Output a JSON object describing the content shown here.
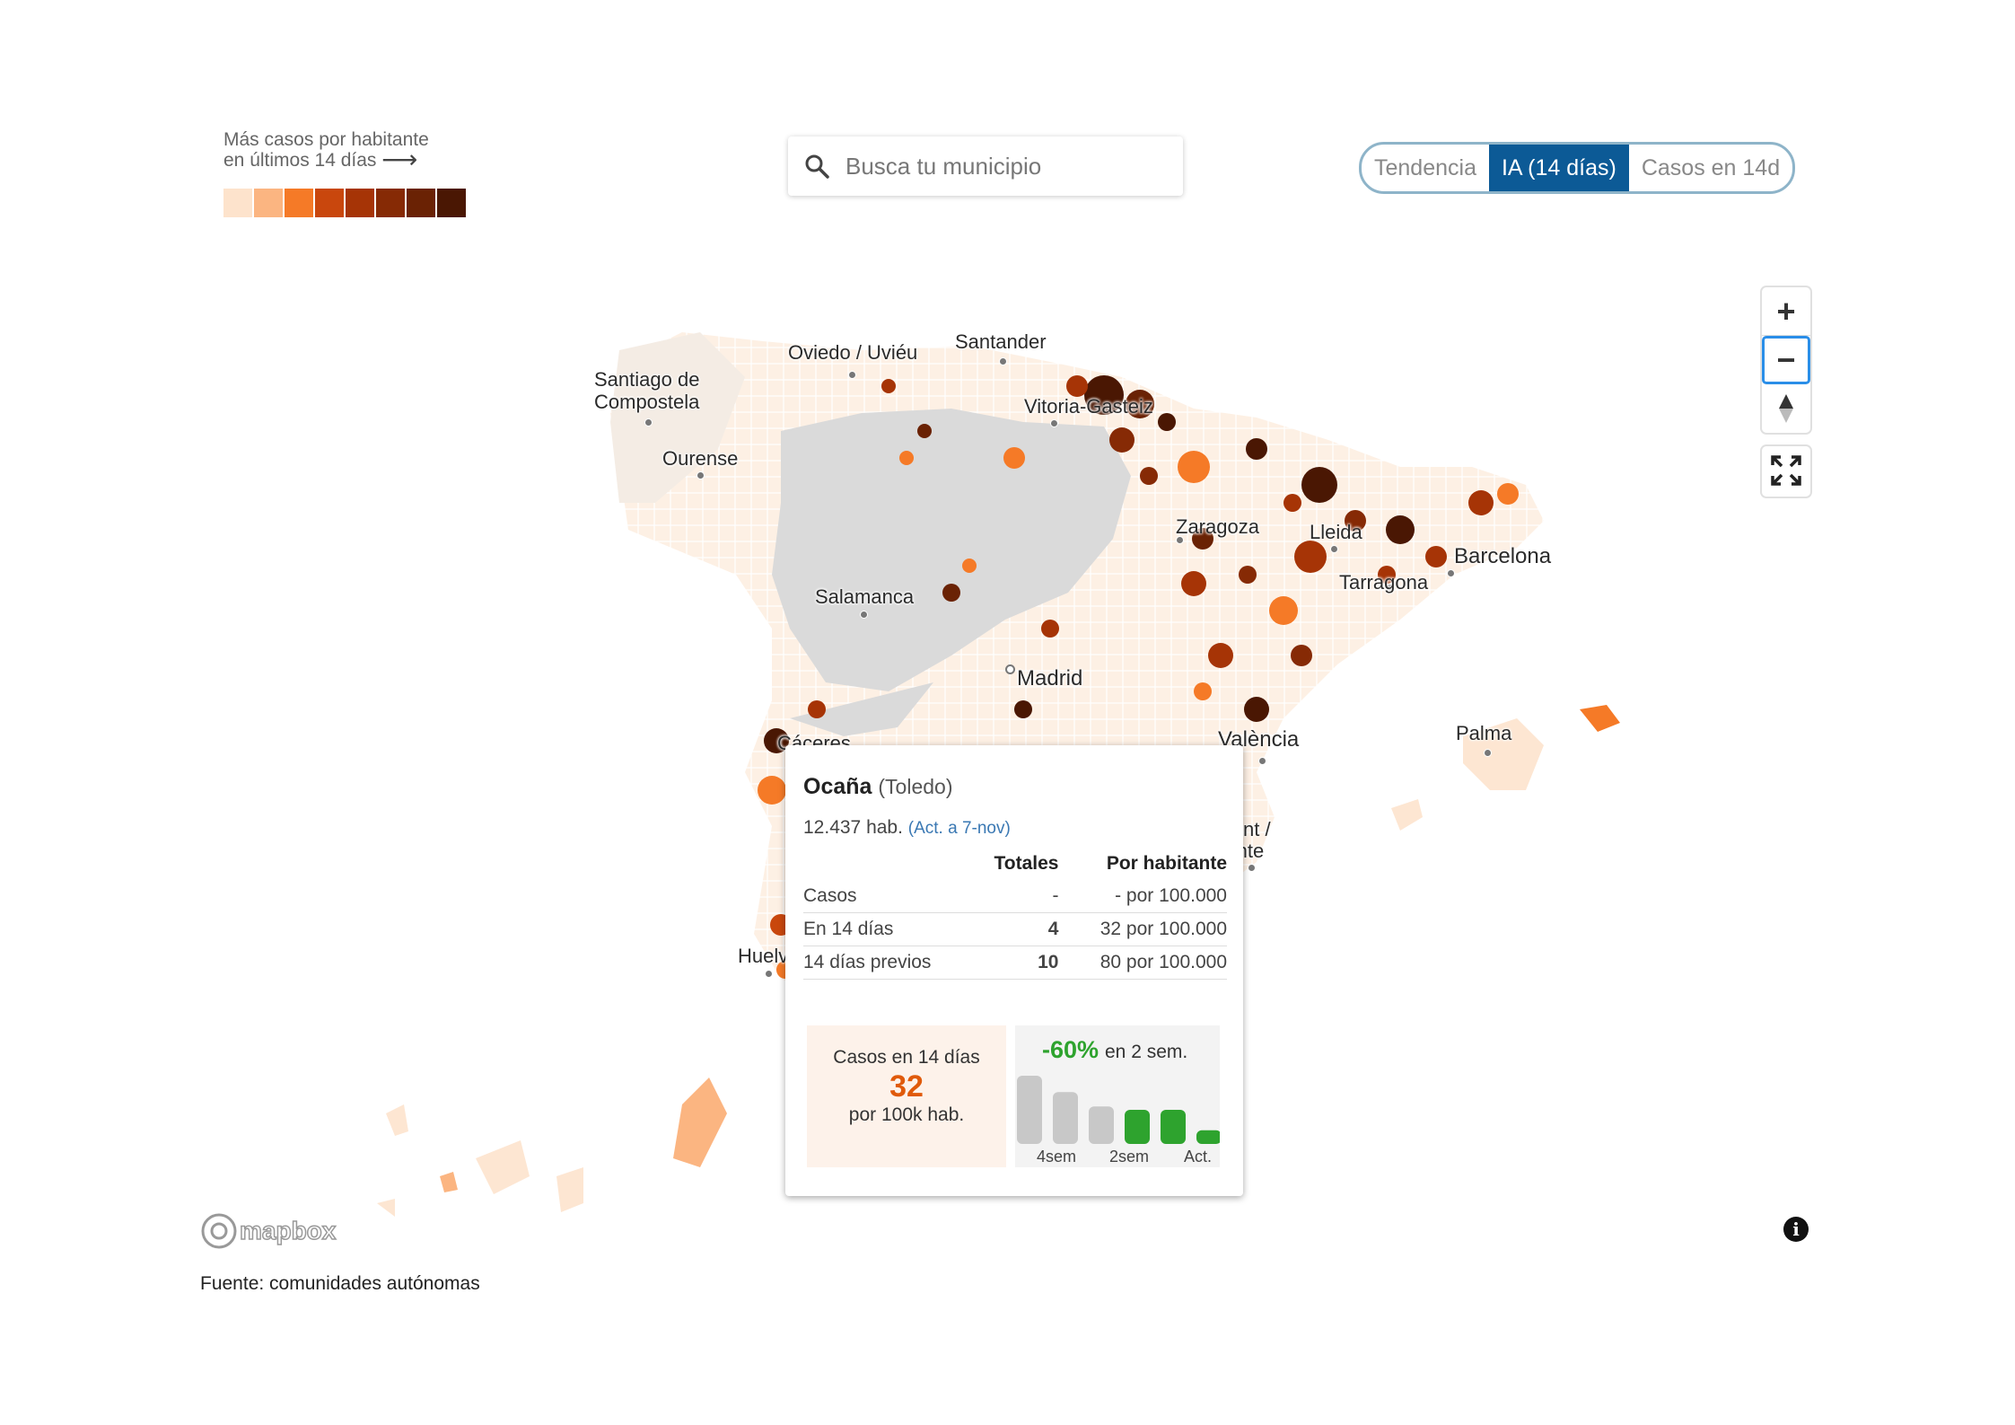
{
  "legend": {
    "title_line1": "Más casos por habitante",
    "title_line2": "en últimos 14 días",
    "arrow": "⟶",
    "colors": [
      "#fde3cc",
      "#fbb581",
      "#f57a27",
      "#c9470d",
      "#a63406",
      "#862a05",
      "#6a2204",
      "#4a1703"
    ]
  },
  "search": {
    "placeholder": "Busca tu municipio",
    "icon": "search-icon"
  },
  "toggle": {
    "options": [
      "Tendencia",
      "IA (14 días)",
      "Casos en 14d"
    ],
    "active": "IA (14 días)"
  },
  "controls": {
    "zoom_in": "+",
    "zoom_out": "−",
    "compass": "compass-icon",
    "fullscreen": "fullscreen-icon"
  },
  "cities": [
    {
      "name": "Oviedo / Uviéu"
    },
    {
      "name": "Santander"
    },
    {
      "name": "Santiago de Compostela"
    },
    {
      "name": "Vitoria-Gasteiz"
    },
    {
      "name": "Ourense"
    },
    {
      "name": "Zaragoza"
    },
    {
      "name": "Lleida"
    },
    {
      "name": "Barcelona"
    },
    {
      "name": "Tarragona"
    },
    {
      "name": "Salamanca"
    },
    {
      "name": "Madrid"
    },
    {
      "name": "Cáceres"
    },
    {
      "name": "València"
    },
    {
      "name": "Palma"
    },
    {
      "name": "Alacant / Alicante"
    },
    {
      "name": "Huelva"
    }
  ],
  "popup": {
    "name": "Ocaña",
    "province": "(Toledo)",
    "population": "12.437 hab.",
    "updated": "(Act. a 7-nov)",
    "col_totals": "Totales",
    "col_per_capita": "Por habitante",
    "rows": [
      {
        "label": "Casos",
        "total": "-",
        "per": "- por 100.000"
      },
      {
        "label": "En 14 días",
        "total": "4",
        "per": "32 por 100.000"
      },
      {
        "label": "14 días previos",
        "total": "10",
        "per": "80 por 100.000"
      }
    ],
    "box_label": "Casos en 14 días",
    "box_value": "32",
    "box_unit": "por 100k hab.",
    "trend_pct": "-60%",
    "trend_label": "en 2 sem.",
    "trend_bars": [
      {
        "value": 1.0,
        "color": "#c8c8c8"
      },
      {
        "value": 0.76,
        "color": "#c8c8c8"
      },
      {
        "value": 0.55,
        "color": "#c8c8c8"
      },
      {
        "value": 0.5,
        "color": "#2ea32e"
      },
      {
        "value": 0.5,
        "color": "#2ea32e"
      },
      {
        "value": 0.2,
        "color": "#2ea32e"
      }
    ],
    "trend_xlabels": [
      "4sem",
      "2sem",
      "Act."
    ]
  },
  "attribution": {
    "logo": "mapbox",
    "info": "i"
  },
  "source": "Fuente: comunidades autónomas"
}
